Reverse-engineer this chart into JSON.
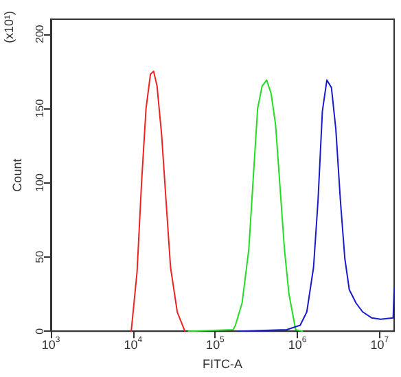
{
  "chart_data": {
    "type": "line",
    "xlabel": "FITC-A",
    "ylabel": "Count",
    "annotations": [
      "(x10¹)"
    ],
    "xlim": [
      1000,
      15000000
    ],
    "xticks": [
      {
        "value": 1000,
        "label": "10$^{3}$"
      },
      {
        "value": 10000,
        "label": "10$^{4}$"
      },
      {
        "value": 100000,
        "label": "10$^{5}$"
      },
      {
        "value": 1000000,
        "label": "10$^{6}$"
      },
      {
        "value": 10000000,
        "label": "10$^{7}$"
      }
    ],
    "ylim": [
      0,
      210
    ],
    "yticks": [
      0,
      50,
      100,
      150,
      200
    ],
    "log": "x",
    "grid": false,
    "marker": "none",
    "line_style": "solid",
    "series": [
      {
        "color": "#ee2222",
        "x": [
          9510,
          11200,
          12700,
          14400,
          16300,
          17800,
          19600,
          22300,
          25200,
          28600,
          34500,
          42700
        ],
        "values": [
          0,
          40,
          100,
          150,
          173,
          175,
          165,
          132,
          88,
          43,
          13,
          0
        ]
      },
      {
        "color": "#22dd22",
        "x": [
          47200,
          165000,
          176000,
          212000,
          256000,
          290000,
          328000,
          372000,
          422000,
          478000,
          542000,
          614000,
          695000,
          788000,
          951000,
          1150000
        ],
        "values": [
          0,
          1,
          4,
          19,
          55,
          103,
          150,
          165,
          169,
          160,
          139,
          97,
          55,
          25,
          1,
          0
        ]
      },
      {
        "color": "#1a1acc",
        "x": [
          187000,
          741000,
          1080000,
          1300000,
          1570000,
          1780000,
          2010000,
          2280000,
          2590000,
          2930000,
          3330000,
          3770000,
          4270000,
          5150000,
          6210000,
          7980000,
          10300000,
          14600000,
          15000000
        ],
        "values": [
          0,
          1,
          4,
          13,
          43,
          88,
          148,
          169,
          164,
          136,
          88,
          49,
          28,
          19,
          13,
          9,
          8,
          9,
          29
        ]
      }
    ]
  }
}
